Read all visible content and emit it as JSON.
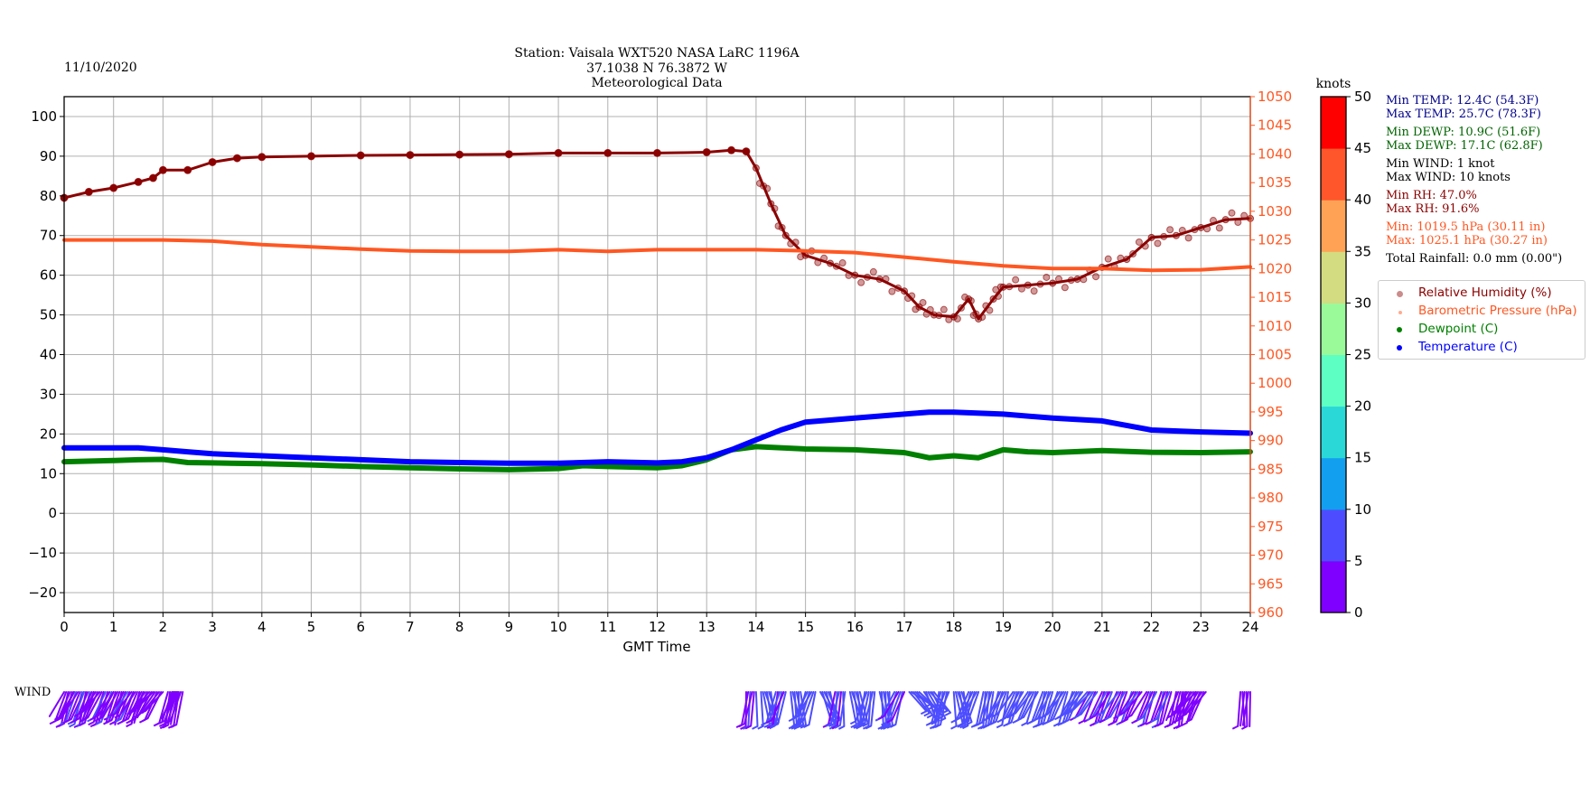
{
  "header": {
    "date": "11/10/2020",
    "title_lines": [
      "Station:  Vaisala WXT520  NASA LaRC 1196A",
      "37.1038 N 76.3872 W",
      "Meteorological Data"
    ]
  },
  "colors": {
    "title": "#0a6e0a",
    "temperature": "#0000ff",
    "dewpoint": "#008000",
    "humidity": "#8b0000",
    "pressure": "#ff5722",
    "temp_text": "#00008b",
    "grid": "#b0b0b0"
  },
  "stats": {
    "min_temp": "Min TEMP: 12.4C (54.3F)",
    "max_temp": "Max TEMP: 25.7C (78.3F)",
    "min_dewp": "Min DEWP: 10.9C (51.6F)",
    "max_dewp": "Max DEWP: 17.1C (62.8F)",
    "min_wind": "Min WIND: 1 knot",
    "max_wind": "Max WIND: 10 knots",
    "min_rh": "Min RH: 47.0%",
    "max_rh": "Max RH: 91.6%",
    "min_pres": "Min: 1019.5 hPa (30.11 in)",
    "max_pres": "Max: 1025.1 hPa (30.27 in)",
    "rainfall": "Total Rainfall: 0.0 mm (0.00\")"
  },
  "legend": {
    "placement": "right",
    "items": [
      "Relative Humidity (%)",
      "Barometric Pressure (hPa)",
      "Dewpoint (C)",
      "Temperature (C)"
    ]
  },
  "colorbar": {
    "label": "knots",
    "ticks": [
      0,
      5,
      10,
      15,
      20,
      25,
      30,
      35,
      40,
      45,
      50
    ],
    "colors": [
      "#7f00ff",
      "#4d4dff",
      "#129ff0",
      "#2ad8d8",
      "#5effc3",
      "#9afa9a",
      "#d3dc80",
      "#ffa256",
      "#ff562c",
      "#ff0000"
    ]
  },
  "wind_label": "WIND",
  "chart_data": {
    "type": "scatter",
    "xlabel": "GMT Time",
    "xlim": [
      0,
      24
    ],
    "xticks": [
      0,
      1,
      2,
      3,
      4,
      5,
      6,
      7,
      8,
      9,
      10,
      11,
      12,
      13,
      14,
      15,
      16,
      17,
      18,
      19,
      20,
      21,
      22,
      23,
      24
    ],
    "ylim_left": [
      -25,
      105
    ],
    "yticks_left": [
      -20,
      -10,
      0,
      10,
      20,
      30,
      40,
      50,
      60,
      70,
      80,
      90,
      100
    ],
    "ylim_right": [
      960,
      1050
    ],
    "yticks_right": [
      960,
      965,
      970,
      975,
      980,
      985,
      990,
      995,
      1000,
      1005,
      1010,
      1015,
      1020,
      1025,
      1030,
      1035,
      1040,
      1045,
      1050
    ],
    "grid": true,
    "series": [
      {
        "name": "Relative Humidity (%)",
        "axis": "left",
        "x": [
          0,
          0.5,
          1,
          1.5,
          1.8,
          2,
          2.5,
          3,
          3.5,
          4,
          5,
          6,
          7,
          8,
          9,
          10,
          11,
          12,
          13,
          13.5,
          13.8,
          14,
          14.3,
          14.6,
          15,
          15.5,
          16,
          16.5,
          17,
          17.3,
          17.6,
          18,
          18.3,
          18.5,
          18.8,
          19,
          19.5,
          20,
          20.5,
          21,
          21.5,
          22,
          22.5,
          23,
          23.5,
          24
        ],
        "y": [
          79.5,
          81,
          82,
          83.5,
          84.5,
          86.5,
          86.5,
          88.5,
          89.5,
          89.8,
          90,
          90.2,
          90.3,
          90.4,
          90.5,
          90.8,
          90.8,
          90.8,
          91,
          91.5,
          91.2,
          87,
          78,
          70,
          65,
          63,
          60,
          59,
          56,
          52,
          50,
          49.5,
          54,
          49,
          54,
          57,
          57.5,
          58,
          59,
          62,
          64,
          69.5,
          70,
          72,
          74,
          74.3
        ]
      },
      {
        "name": "Barometric Pressure (hPa)",
        "axis": "right",
        "x": [
          0,
          2,
          3,
          4,
          5,
          6,
          7,
          8,
          9,
          10,
          11,
          12,
          13,
          14,
          15,
          16,
          17,
          18,
          19,
          20,
          21,
          22,
          23,
          24
        ],
        "y": [
          1025,
          1025,
          1024.8,
          1024.2,
          1023.8,
          1023.4,
          1023.1,
          1023,
          1023,
          1023.3,
          1023,
          1023.3,
          1023.3,
          1023.3,
          1023.1,
          1022.8,
          1022,
          1021.2,
          1020.5,
          1020,
          1020,
          1019.7,
          1019.8,
          1020.3
        ]
      },
      {
        "name": "Dewpoint (C)",
        "axis": "left",
        "x": [
          0,
          1,
          1.5,
          2,
          2.5,
          3,
          4,
          5,
          6,
          7,
          8,
          9,
          10,
          10.5,
          11,
          12,
          12.5,
          13,
          13.5,
          14,
          15,
          16,
          17,
          17.5,
          18,
          18.5,
          19,
          19.5,
          20,
          21,
          22,
          23,
          24
        ],
        "y": [
          13,
          13.3,
          13.5,
          13.6,
          12.8,
          12.7,
          12.5,
          12.2,
          11.8,
          11.5,
          11.2,
          11,
          11.3,
          12,
          11.8,
          11.5,
          12,
          13.5,
          16,
          16.8,
          16.2,
          16,
          15.3,
          14,
          14.5,
          14,
          16,
          15.5,
          15.3,
          15.8,
          15.4,
          15.3,
          15.5
        ]
      },
      {
        "name": "Temperature (C)",
        "axis": "left",
        "x": [
          0,
          1.5,
          2,
          2.5,
          3,
          4,
          5,
          6,
          7,
          8,
          9,
          10,
          11,
          12,
          12.5,
          13,
          13.5,
          14,
          14.5,
          15,
          16,
          17,
          17.5,
          18,
          19,
          20,
          21,
          22,
          23,
          24
        ],
        "y": [
          16.5,
          16.5,
          16,
          15.5,
          15,
          14.5,
          14,
          13.5,
          13,
          12.8,
          12.6,
          12.6,
          13,
          12.7,
          13,
          14,
          16,
          18.5,
          21,
          23,
          24,
          25,
          25.5,
          25.5,
          25,
          24,
          23.3,
          21,
          20.5,
          20.2
        ]
      }
    ],
    "wind": {
      "hours": [
        0.1,
        0.3,
        0.5,
        0.7,
        0.9,
        1.1,
        1.3,
        1.5,
        1.7,
        1.9,
        2.2,
        2.3,
        13.9,
        14.2,
        14.5,
        14.8,
        15.1,
        15.4,
        15.7,
        16,
        16.3,
        16.6,
        16.9,
        17.2,
        17.5,
        17.8,
        18.1,
        18.4,
        18.7,
        19,
        19.3,
        19.6,
        19.9,
        20.2,
        20.5,
        20.8,
        21.1,
        21.4,
        21.7,
        22,
        22.3,
        22.6,
        22.8,
        23,
        23.9
      ],
      "speed_knots": [
        3,
        4,
        4,
        3,
        4,
        3,
        4,
        3,
        3,
        3,
        3,
        3,
        4,
        6,
        5,
        6,
        7,
        6,
        5,
        7,
        6,
        6,
        5,
        7,
        8,
        6,
        7,
        6,
        7,
        6,
        6,
        7,
        6,
        6,
        6,
        5,
        4,
        4,
        4,
        4,
        4,
        3,
        3,
        3,
        2
      ],
      "direction_deg": [
        330,
        325,
        330,
        320,
        325,
        330,
        320,
        325,
        315,
        310,
        340,
        335,
        350,
        20,
        340,
        10,
        330,
        30,
        350,
        20,
        340,
        10,
        330,
        60,
        45,
        340,
        20,
        330,
        340,
        330,
        325,
        320,
        330,
        325,
        320,
        315,
        325,
        320,
        320,
        325,
        335,
        340,
        320,
        315,
        0
      ]
    }
  }
}
